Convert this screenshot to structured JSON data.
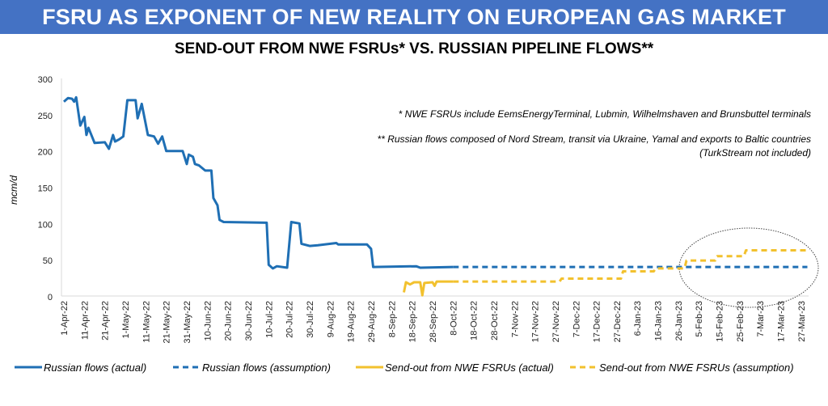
{
  "header": {
    "title": "FSRU AS EXPONENT OF NEW REALITY ON EUROPEAN GAS MARKET",
    "subtitle": "SEND-OUT FROM NWE FSRUs* VS. RUSSIAN PIPELINE FLOWS**"
  },
  "notes": [
    "* NWE FSRUs include EemsEnergyTerminal, Lubmin, Wilhelmshaven and Brunsbuttel terminals",
    "** Russian flows composed of Nord Stream, transit via Ukraine, Yamal and exports to Baltic countries",
    "(TurkStream not included)"
  ],
  "chart_data": {
    "type": "line",
    "title": "SEND-OUT FROM NWE FSRUs* VS. RUSSIAN PIPELINE FLOWS**",
    "ylabel": "mcm/d",
    "xlabel": "",
    "ylim": [
      0,
      300
    ],
    "yticks": [
      0,
      50,
      100,
      150,
      200,
      250,
      300
    ],
    "xlim": [
      "2022-04-01",
      "2023-03-31"
    ],
    "xtick_labels": [
      "1-Apr-22",
      "11-Apr-22",
      "21-Apr-22",
      "1-May-22",
      "11-May-22",
      "21-May-22",
      "31-May-22",
      "10-Jun-22",
      "20-Jun-22",
      "30-Jun-22",
      "10-Jul-22",
      "20-Jul-22",
      "30-Jul-22",
      "9-Aug-22",
      "19-Aug-22",
      "29-Aug-22",
      "8-Sep-22",
      "18-Sep-22",
      "28-Sep-22",
      "8-Oct-22",
      "18-Oct-22",
      "28-Oct-22",
      "7-Nov-22",
      "17-Nov-22",
      "27-Nov-22",
      "7-Dec-22",
      "17-Dec-22",
      "27-Dec-22",
      "6-Jan-23",
      "16-Jan-23",
      "26-Jan-23",
      "5-Feb-23",
      "15-Feb-23",
      "25-Feb-23",
      "7-Mar-23",
      "17-Mar-23",
      "27-Mar-23"
    ],
    "grid": false,
    "legend_position": "bottom",
    "colors": {
      "russian": "#1F6FB4",
      "fsru": "#F2C12E"
    },
    "series": [
      {
        "name": "Russian flows (actual)",
        "style": "solid",
        "color": "#1F6FB4",
        "points": [
          [
            "2022-04-01",
            268
          ],
          [
            "2022-04-03",
            273
          ],
          [
            "2022-04-05",
            272
          ],
          [
            "2022-04-06",
            268
          ],
          [
            "2022-04-07",
            274
          ],
          [
            "2022-04-09",
            235
          ],
          [
            "2022-04-11",
            247
          ],
          [
            "2022-04-12",
            222
          ],
          [
            "2022-04-13",
            232
          ],
          [
            "2022-04-16",
            211
          ],
          [
            "2022-04-21",
            212
          ],
          [
            "2022-04-23",
            203
          ],
          [
            "2022-04-25",
            222
          ],
          [
            "2022-04-26",
            213
          ],
          [
            "2022-04-28",
            216
          ],
          [
            "2022-04-30",
            220
          ],
          [
            "2022-05-02",
            270
          ],
          [
            "2022-05-06",
            270
          ],
          [
            "2022-05-07",
            245
          ],
          [
            "2022-05-09",
            265
          ],
          [
            "2022-05-12",
            222
          ],
          [
            "2022-05-15",
            220
          ],
          [
            "2022-05-17",
            210
          ],
          [
            "2022-05-19",
            220
          ],
          [
            "2022-05-21",
            200
          ],
          [
            "2022-05-29",
            200
          ],
          [
            "2022-05-31",
            182
          ],
          [
            "2022-06-01",
            195
          ],
          [
            "2022-06-03",
            192
          ],
          [
            "2022-06-04",
            182
          ],
          [
            "2022-06-06",
            180
          ],
          [
            "2022-06-09",
            173
          ],
          [
            "2022-06-12",
            173
          ],
          [
            "2022-06-13",
            135
          ],
          [
            "2022-06-15",
            125
          ],
          [
            "2022-06-16",
            105
          ],
          [
            "2022-06-18",
            102
          ],
          [
            "2022-07-09",
            101
          ],
          [
            "2022-07-10",
            43
          ],
          [
            "2022-07-12",
            38
          ],
          [
            "2022-07-14",
            41
          ],
          [
            "2022-07-19",
            39
          ],
          [
            "2022-07-21",
            102
          ],
          [
            "2022-07-25",
            100
          ],
          [
            "2022-07-26",
            72
          ],
          [
            "2022-07-30",
            69
          ],
          [
            "2022-08-03",
            70
          ],
          [
            "2022-08-12",
            73
          ],
          [
            "2022-08-13",
            71
          ],
          [
            "2022-08-27",
            71
          ],
          [
            "2022-08-29",
            65
          ],
          [
            "2022-08-30",
            40
          ],
          [
            "2022-09-20",
            41
          ],
          [
            "2022-09-22",
            39
          ],
          [
            "2022-10-08",
            40
          ]
        ]
      },
      {
        "name": "Russian flows (assumption)",
        "style": "dashed",
        "color": "#1F6FB4",
        "points": [
          [
            "2022-10-08",
            40
          ],
          [
            "2023-03-30",
            40
          ]
        ]
      },
      {
        "name": "Send-out from NWE FSRUs (actual)",
        "style": "solid",
        "color": "#F2C12E",
        "points": [
          [
            "2022-09-14",
            5
          ],
          [
            "2022-09-15",
            19
          ],
          [
            "2022-09-17",
            16
          ],
          [
            "2022-09-19",
            19
          ],
          [
            "2022-09-22",
            19
          ],
          [
            "2022-09-23",
            1
          ],
          [
            "2022-09-24",
            18
          ],
          [
            "2022-09-28",
            19
          ],
          [
            "2022-09-29",
            14
          ],
          [
            "2022-09-30",
            20
          ],
          [
            "2022-10-08",
            20
          ]
        ]
      },
      {
        "name": "Send-out from NWE FSRUs (assumption)",
        "style": "dashed",
        "color": "#F2C12E",
        "points": [
          [
            "2022-10-08",
            20
          ],
          [
            "2022-11-29",
            20
          ],
          [
            "2022-11-30",
            24
          ],
          [
            "2022-12-29",
            24
          ],
          [
            "2022-12-30",
            34
          ],
          [
            "2023-01-14",
            34
          ],
          [
            "2023-01-15",
            38
          ],
          [
            "2023-01-29",
            38
          ],
          [
            "2023-01-30",
            49
          ],
          [
            "2023-02-13",
            49
          ],
          [
            "2023-02-14",
            55
          ],
          [
            "2023-02-27",
            55
          ],
          [
            "2023-02-28",
            63
          ],
          [
            "2023-03-30",
            63
          ]
        ]
      }
    ]
  }
}
